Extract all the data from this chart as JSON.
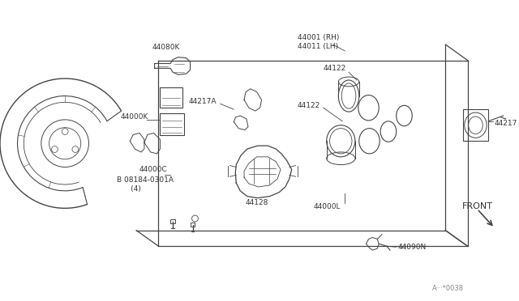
{
  "bg_color": "#ffffff",
  "line_color": "#444444",
  "text_color": "#333333",
  "labels": {
    "08184_0301A": "B 08184-0301A\n      (4)",
    "44000C": "44000C",
    "44000K": "44000K",
    "44000L": "44000L",
    "44001_44011": "44001 (RH)\n44011 (LH)",
    "44080K": "44080K",
    "44090N": "44090N",
    "44122a": "44122",
    "44122b": "44122",
    "44128": "44128",
    "44217": "44217",
    "44217A": "44217A",
    "FRONT": "FRONT"
  },
  "watermark": "A···*0038"
}
